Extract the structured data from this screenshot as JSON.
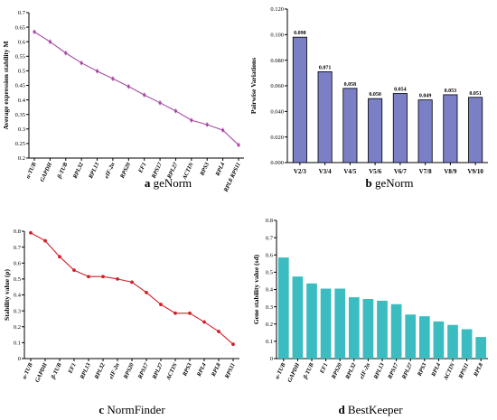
{
  "chart_data": [
    {
      "type": "line",
      "caption_letter": "a",
      "caption_text": "geNorm",
      "ylabel": "Average expression stability M",
      "ylim": [
        0.2,
        0.7
      ],
      "yticks": [
        0.2,
        0.25,
        0.3,
        0.35,
        0.4,
        0.45,
        0.5,
        0.55,
        0.6,
        0.65,
        0.7
      ],
      "categories": [
        "α-TUB",
        "GAPDH",
        "β-TUB",
        "RPL32",
        "RPL13",
        "eIF-2α",
        "RPS20",
        "EF1",
        "RPS17",
        "RPL27",
        "ACTIN",
        "RPS3",
        "RPL4",
        "RPL8 RPS11"
      ],
      "values": [
        0.634,
        0.6,
        0.561,
        0.527,
        0.499,
        0.473,
        0.446,
        0.417,
        0.39,
        0.362,
        0.33,
        0.315,
        0.296,
        0.245
      ],
      "color": "#a64aa6"
    },
    {
      "type": "bar",
      "caption_letter": "b",
      "caption_text": "geNorm",
      "ylabel": "Pairwise Variations",
      "ylim": [
        0,
        0.12
      ],
      "yticks": [
        "0.000",
        "0.020",
        "0.040",
        "0.060",
        "0.080",
        "0.100",
        "0.120"
      ],
      "categories": [
        "V2/3",
        "V3/4",
        "V4/5",
        "V5/6",
        "V6/7",
        "V7/8",
        "V8/9",
        "V9/10"
      ],
      "values": [
        0.098,
        0.071,
        0.058,
        0.05,
        0.054,
        0.049,
        0.053,
        0.051
      ],
      "data_labels": [
        "0.098",
        "0.071",
        "0.058",
        "0.050",
        "0.054",
        "0.049",
        "0.053",
        "0.051"
      ],
      "color": "#7b7fc6"
    },
    {
      "type": "line",
      "caption_letter": "c",
      "caption_text": "NormFinder",
      "ylabel": "Stability value (ρ)",
      "ylim": [
        0,
        0.8
      ],
      "yticks": [
        0,
        0.1,
        0.2,
        0.3,
        0.4,
        0.5,
        0.6,
        0.7,
        0.8
      ],
      "categories": [
        "α-TUB",
        "GAPDH",
        "β-TUB",
        "EF1",
        "RPL13",
        "RPL32",
        "eIF-2α",
        "RPS20",
        "RPS17",
        "RPL27",
        "ACTIN",
        "RPS3",
        "RPL4",
        "RPL8",
        "RPS11"
      ],
      "values": [
        0.79,
        0.74,
        0.64,
        0.555,
        0.515,
        0.515,
        0.5,
        0.48,
        0.415,
        0.34,
        0.285,
        0.285,
        0.23,
        0.17,
        0.09
      ],
      "color": "#d0202a"
    },
    {
      "type": "bar",
      "caption_letter": "d",
      "caption_text": "BestKeeper",
      "ylabel": "Gene stability value (sd)",
      "ylim": [
        0,
        0.8
      ],
      "yticks": [
        0,
        0.1,
        0.2,
        0.3,
        0.4,
        0.5,
        0.6,
        0.7,
        0.8
      ],
      "categories": [
        "α-TUB",
        "GAPDH",
        "β-TUB",
        "EF1",
        "RPS20",
        "RPL32",
        "eIF-2α",
        "RPL13",
        "RPS17",
        "RPL27",
        "RPS3",
        "RPL4",
        "ACTIN",
        "RPS11",
        "RPL8"
      ],
      "values": [
        0.585,
        0.475,
        0.435,
        0.405,
        0.405,
        0.355,
        0.345,
        0.335,
        0.315,
        0.255,
        0.245,
        0.215,
        0.195,
        0.17,
        0.125
      ],
      "color": "#3bbcc0"
    }
  ]
}
